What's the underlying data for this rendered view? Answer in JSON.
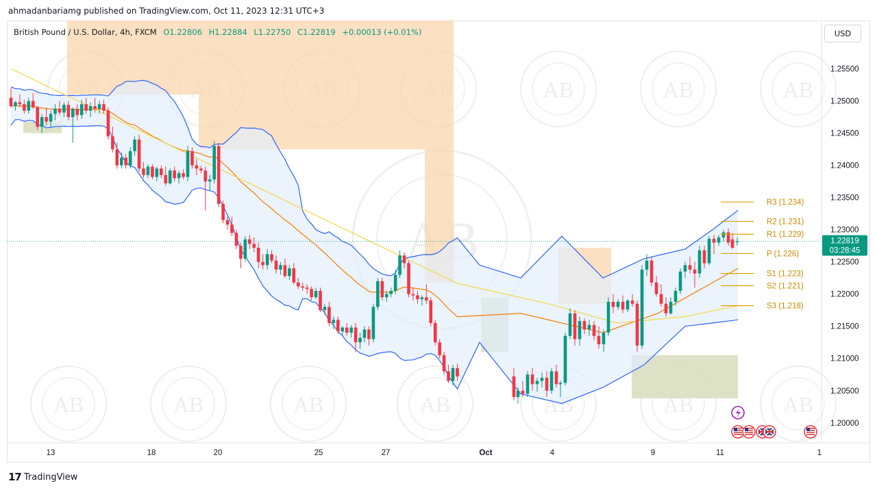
{
  "publisher": {
    "text": "ahmadanbariamg published on TradingView.com, Oct 11, 2023 12:31 UTC+3"
  },
  "legend": {
    "symbol": "British Pound / U.S. Dollar, 4h, FXCM",
    "open": "O1.22806",
    "high": "H1.22884",
    "low": "L1.22750",
    "close": "C1.22819",
    "change": "+0.00013 (+0.01%)"
  },
  "currency_button": "USD",
  "watermark_text": "AB",
  "price_tag": {
    "price": "1.22819",
    "countdown": "03:28:45",
    "value": 1.22819
  },
  "footer": {
    "brand": "TradingView",
    "logo": "tradingview-logo-icon"
  },
  "colors": {
    "up": "#089981",
    "down": "#f23645",
    "band_line": "#2962ff",
    "band_fill": "#e3eefb",
    "ema_orange": "#f57c00",
    "sma_yellow": "#f5d547",
    "zone_orange": "#fbd5ad",
    "zone_green": "#d9dfc0",
    "pivot_line": "#e2a000",
    "pivot_text": "#c98a00"
  },
  "chart_data": {
    "type": "candlestick",
    "ylim": [
      1.197,
      1.2625
    ],
    "y_ticks": [
      "1.25500",
      "1.25000",
      "1.24500",
      "1.24000",
      "1.23500",
      "1.23000",
      "1.22500",
      "1.22000",
      "1.21500",
      "1.21000",
      "1.20500",
      "1.20000"
    ],
    "y_tick_values": [
      1.255,
      1.25,
      1.245,
      1.24,
      1.235,
      1.23,
      1.225,
      1.22,
      1.215,
      1.21,
      1.205,
      1.2
    ],
    "x_ticks": [
      "13",
      "18",
      "20",
      "25",
      "27",
      "Oct",
      "4",
      "9",
      "11",
      "1"
    ],
    "x_tick_positions": [
      0,
      19,
      27,
      46,
      55,
      72,
      82,
      101,
      109,
      129
    ],
    "bars_shown": 114,
    "candles": [
      [
        1.2505,
        1.252,
        1.249,
        1.2492
      ],
      [
        1.2492,
        1.25,
        1.2485,
        1.2498
      ],
      [
        1.2498,
        1.251,
        1.249,
        1.2495
      ],
      [
        1.2495,
        1.2502,
        1.248,
        1.2485
      ],
      [
        1.2485,
        1.2505,
        1.248,
        1.25
      ],
      [
        1.25,
        1.2512,
        1.2488,
        1.249
      ],
      [
        1.249,
        1.2492,
        1.2455,
        1.246
      ],
      [
        1.246,
        1.248,
        1.245,
        1.2475
      ],
      [
        1.2475,
        1.249,
        1.2462,
        1.2468
      ],
      [
        1.2468,
        1.2485,
        1.246,
        1.248
      ],
      [
        1.248,
        1.2495,
        1.247,
        1.2488
      ],
      [
        1.2488,
        1.25,
        1.2478,
        1.2482
      ],
      [
        1.2482,
        1.2498,
        1.2475,
        1.2494
      ],
      [
        1.2494,
        1.25,
        1.247,
        1.2475
      ],
      [
        1.2475,
        1.249,
        1.2435,
        1.2488
      ],
      [
        1.2488,
        1.2495,
        1.247,
        1.2478
      ],
      [
        1.2478,
        1.2502,
        1.2472,
        1.2495
      ],
      [
        1.2495,
        1.2505,
        1.248,
        1.2485
      ],
      [
        1.2485,
        1.2498,
        1.2475,
        1.2492
      ],
      [
        1.2492,
        1.2505,
        1.2482,
        1.2488
      ],
      [
        1.2488,
        1.25,
        1.248,
        1.2495
      ],
      [
        1.2495,
        1.2502,
        1.248,
        1.2485
      ],
      [
        1.2485,
        1.249,
        1.244,
        1.2445
      ],
      [
        1.2445,
        1.246,
        1.242,
        1.2425
      ],
      [
        1.2425,
        1.2435,
        1.2395,
        1.24
      ],
      [
        1.24,
        1.242,
        1.2395,
        1.2412
      ],
      [
        1.2412,
        1.2418,
        1.2395,
        1.24
      ],
      [
        1.24,
        1.2428,
        1.2395,
        1.2422
      ],
      [
        1.2422,
        1.2445,
        1.2415,
        1.244
      ],
      [
        1.244,
        1.2448,
        1.239,
        1.2395
      ],
      [
        1.2395,
        1.2405,
        1.238,
        1.2385
      ],
      [
        1.2385,
        1.2402,
        1.238,
        1.2398
      ],
      [
        1.2398,
        1.2402,
        1.2378,
        1.2382
      ],
      [
        1.2382,
        1.2398,
        1.2375,
        1.2395
      ],
      [
        1.2395,
        1.24,
        1.238,
        1.2385
      ],
      [
        1.2385,
        1.2398,
        1.2368,
        1.2372
      ],
      [
        1.2372,
        1.2395,
        1.237,
        1.2392
      ],
      [
        1.2392,
        1.2398,
        1.2375,
        1.238
      ],
      [
        1.238,
        1.2392,
        1.2372,
        1.2388
      ],
      [
        1.2388,
        1.2394,
        1.2378,
        1.2382
      ],
      [
        1.2382,
        1.243,
        1.2375,
        1.2422
      ],
      [
        1.2422,
        1.2428,
        1.2395,
        1.24
      ],
      [
        1.24,
        1.241,
        1.2385,
        1.2395
      ],
      [
        1.2395,
        1.24,
        1.2388,
        1.2392
      ],
      [
        1.2392,
        1.2398,
        1.233,
        1.2375
      ],
      [
        1.2375,
        1.2385,
        1.236,
        1.2378
      ],
      [
        1.2378,
        1.2438,
        1.2372,
        1.243
      ],
      [
        1.243,
        1.2435,
        1.2335,
        1.234
      ],
      [
        1.234,
        1.2345,
        1.231,
        1.2315
      ],
      [
        1.2315,
        1.232,
        1.23,
        1.2308
      ],
      [
        1.2308,
        1.232,
        1.229,
        1.2295
      ],
      [
        1.2295,
        1.23,
        1.227,
        1.2275
      ],
      [
        1.2275,
        1.228,
        1.224,
        1.2255
      ],
      [
        1.2255,
        1.229,
        1.225,
        1.2285
      ],
      [
        1.2285,
        1.2292,
        1.227,
        1.2278
      ],
      [
        1.2278,
        1.2288,
        1.2265,
        1.2272
      ],
      [
        1.2272,
        1.228,
        1.224,
        1.225
      ],
      [
        1.225,
        1.2262,
        1.2238,
        1.2245
      ],
      [
        1.2245,
        1.227,
        1.2238,
        1.2262
      ],
      [
        1.2262,
        1.2268,
        1.2248,
        1.2252
      ],
      [
        1.2252,
        1.226,
        1.2232,
        1.2238
      ],
      [
        1.2238,
        1.225,
        1.223,
        1.2245
      ],
      [
        1.2245,
        1.2255,
        1.2225,
        1.2228
      ],
      [
        1.2228,
        1.2245,
        1.2222,
        1.224
      ],
      [
        1.224,
        1.2248,
        1.2215,
        1.2218
      ],
      [
        1.2218,
        1.2225,
        1.2208,
        1.2212
      ],
      [
        1.2212,
        1.2218,
        1.2205,
        1.221
      ],
      [
        1.221,
        1.2215,
        1.22,
        1.2208
      ],
      [
        1.2208,
        1.2212,
        1.219,
        1.2195
      ],
      [
        1.2195,
        1.221,
        1.2192,
        1.2205
      ],
      [
        1.2205,
        1.221,
        1.2172,
        1.2175
      ],
      [
        1.2175,
        1.2185,
        1.2168,
        1.218
      ],
      [
        1.218,
        1.2188,
        1.215,
        1.2155
      ],
      [
        1.2155,
        1.2165,
        1.2145,
        1.216
      ],
      [
        1.216,
        1.2165,
        1.2138,
        1.2142
      ],
      [
        1.2142,
        1.215,
        1.2135,
        1.2148
      ],
      [
        1.2148,
        1.2155,
        1.2135,
        1.214
      ],
      [
        1.214,
        1.2152,
        1.2132,
        1.2148
      ],
      [
        1.2148,
        1.2155,
        1.211,
        1.2125
      ],
      [
        1.2125,
        1.214,
        1.2115,
        1.2132
      ],
      [
        1.2132,
        1.215,
        1.2125,
        1.2145
      ],
      [
        1.2145,
        1.215,
        1.212,
        1.213
      ],
      [
        1.213,
        1.2185,
        1.2125,
        1.218
      ],
      [
        1.218,
        1.2225,
        1.2175,
        1.222
      ],
      [
        1.222,
        1.2225,
        1.219,
        1.2195
      ],
      [
        1.2195,
        1.2205,
        1.2188,
        1.22
      ],
      [
        1.22,
        1.221,
        1.2195,
        1.2205
      ],
      [
        1.2205,
        1.2238,
        1.22,
        1.223
      ],
      [
        1.223,
        1.2268,
        1.2225,
        1.226
      ],
      [
        1.226,
        1.2265,
        1.224,
        1.2248
      ],
      [
        1.2248,
        1.2252,
        1.2195,
        1.22
      ],
      [
        1.22,
        1.221,
        1.219,
        1.2198
      ],
      [
        1.2198,
        1.2205,
        1.2185,
        1.2192
      ],
      [
        1.2192,
        1.2198,
        1.2182,
        1.2195
      ],
      [
        1.2195,
        1.2215,
        1.2185,
        1.219
      ],
      [
        1.219,
        1.2195,
        1.215,
        1.2155
      ],
      [
        1.2155,
        1.216,
        1.212,
        1.2125
      ],
      [
        1.2125,
        1.213,
        1.21,
        1.2105
      ],
      [
        1.2105,
        1.211,
        1.2075,
        1.208
      ],
      [
        1.208,
        1.209,
        1.2062,
        1.2065
      ],
      [
        1.2065,
        1.209,
        1.2058,
        1.2085
      ],
      [
        1.2085,
        1.2092,
        1.2065,
        1.2072
      ]
    ],
    "pivots": [
      {
        "label": "R3 (1.234)",
        "value": 1.2343
      },
      {
        "label": "R2 (1.231)",
        "value": 1.2313
      },
      {
        "label": "R1 (1.229)",
        "value": 1.2293
      },
      {
        "label": "P (1.226)",
        "value": 1.2263
      },
      {
        "label": "S1 (1.223)",
        "value": 1.2232
      },
      {
        "label": "S2 (1.221)",
        "value": 1.2213
      },
      {
        "label": "S3 (1.218)",
        "value": 1.2182
      }
    ],
    "event_icons": [
      "lightning-icon",
      "us-flag-icon",
      "us-flag-icon",
      "uk-flag-icon",
      "uk-flag-icon",
      "us-flag-icon"
    ]
  }
}
